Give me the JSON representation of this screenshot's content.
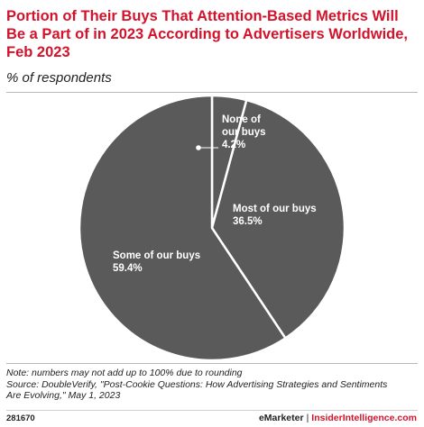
{
  "header": {
    "title": "Portion of Their Buys That Attention-Based Metrics Will Be a Part of in 2023 According to Advertisers Worldwide, Feb 2023",
    "subtitle": "% of respondents"
  },
  "chart_data": {
    "type": "pie",
    "title": "Portion of Their Buys That Attention-Based Metrics Will Be a Part of in 2023 According to Advertisers Worldwide, Feb 2023",
    "subtitle": "% of respondents",
    "slices": [
      {
        "label_lines": [
          "None of",
          "our buys"
        ],
        "value_text": "4.2%",
        "value": 4.2,
        "color": "#5a5a5a"
      },
      {
        "label_lines": [
          "Most of our buys"
        ],
        "value_text": "36.5%",
        "value": 36.5,
        "color": "#5a5a5a"
      },
      {
        "label_lines": [
          "Some of our buys"
        ],
        "value_text": "59.4%",
        "value": 59.4,
        "color": "#5a5a5a"
      }
    ],
    "slice_border_color": "#ffffff",
    "start": "12 o'clock, clockwise"
  },
  "footer": {
    "note_lines": [
      "Note: numbers may not add up to 100% due to rounding",
      "Source: DoubleVerify, \"Post-Cookie Questions: How Advertising Strategies and Sentiments",
      "Are Evolving,\" May 1, 2023"
    ],
    "chart_id": "281670",
    "brand_left": "eMarketer",
    "separator": "|",
    "brand_right": "InsiderIntelligence.com"
  },
  "colors": {
    "title": "#d3132b",
    "pie_fill": "#5a5a5a",
    "label": "#ffffff"
  }
}
